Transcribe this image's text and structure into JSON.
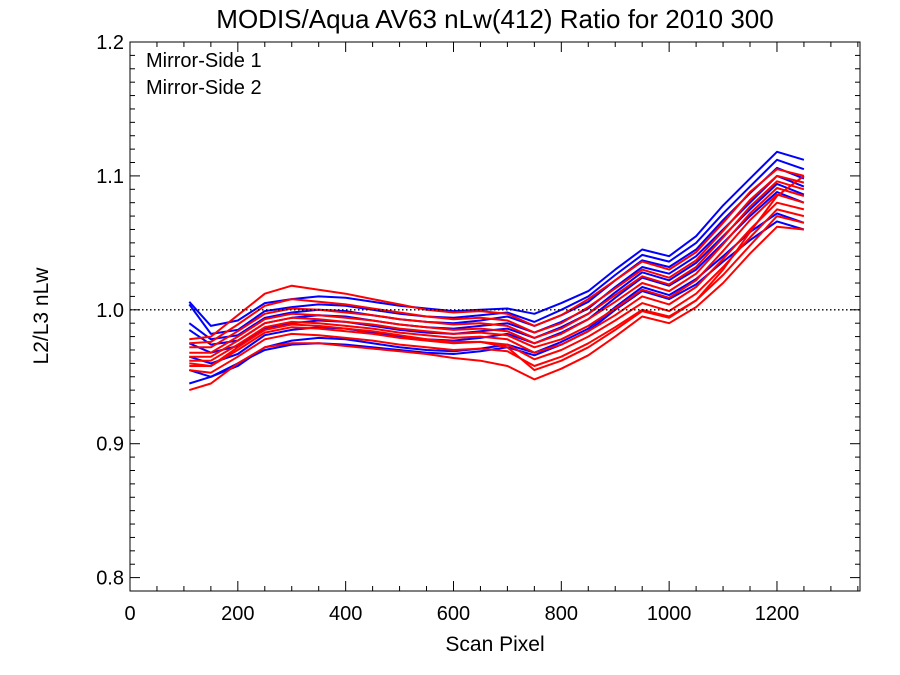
{
  "chart_data": {
    "type": "line",
    "title": "MODIS/Aqua AV63 nLw(412) Ratio for 2010 300",
    "xlabel": "Scan Pixel",
    "ylabel": "L2/L3 nLw",
    "xlim": [
      0,
      1354
    ],
    "ylim": [
      0.79,
      1.2
    ],
    "xticks": [
      0,
      200,
      400,
      600,
      800,
      1000,
      1200
    ],
    "xtick_labels": [
      "0",
      "200",
      "400",
      "600",
      "800",
      "1000",
      "1200"
    ],
    "yticks": [
      0.8,
      0.9,
      1.0,
      1.1,
      1.2
    ],
    "ytick_labels": [
      "0.8",
      "0.9",
      "1.0",
      "1.1",
      "1.2"
    ],
    "reference_line": {
      "y": 1.0,
      "style": "dotted"
    },
    "grid": false,
    "legend": {
      "placement": "top-left"
    },
    "colors": {
      "Mirror-Side 1": "#0000ff",
      "Mirror-Side 2": "#ff0000"
    },
    "x": [
      110,
      150,
      200,
      250,
      300,
      350,
      400,
      450,
      500,
      550,
      600,
      650,
      700,
      750,
      800,
      850,
      900,
      950,
      1000,
      1050,
      1100,
      1150,
      1200,
      1250
    ],
    "series": [
      {
        "name": "Mirror-Side 1",
        "values": [
          1.006,
          0.988,
          0.992,
          1.005,
          1.008,
          1.01,
          1.009,
          1.006,
          1.003,
          1.001,
          0.999,
          1.0,
          1.001,
          0.997,
          1.005,
          1.014,
          1.03,
          1.045,
          1.04,
          1.055,
          1.078,
          1.098,
          1.118,
          1.112
        ]
      },
      {
        "name": "Mirror-Side 1",
        "values": [
          1.004,
          0.982,
          0.985,
          0.999,
          1.002,
          1.004,
          1.003,
          1.0,
          0.997,
          0.995,
          0.994,
          0.996,
          0.998,
          0.991,
          1.0,
          1.01,
          1.026,
          1.041,
          1.036,
          1.05,
          1.072,
          1.092,
          1.112,
          1.105
        ]
      },
      {
        "name": "Mirror-Side 1",
        "values": [
          0.99,
          0.978,
          0.981,
          0.994,
          0.998,
          1.0,
          0.999,
          0.996,
          0.993,
          0.991,
          0.99,
          0.992,
          0.995,
          0.988,
          0.996,
          1.006,
          1.022,
          1.037,
          1.032,
          1.045,
          1.067,
          1.087,
          1.106,
          1.098
        ]
      },
      {
        "name": "Mirror-Side 1",
        "values": [
          0.985,
          0.974,
          0.977,
          0.99,
          0.994,
          0.996,
          0.995,
          0.992,
          0.989,
          0.987,
          0.986,
          0.988,
          0.99,
          0.983,
          0.991,
          1.001,
          1.017,
          1.032,
          1.027,
          1.04,
          1.06,
          1.08,
          1.1,
          1.092
        ]
      },
      {
        "name": "Mirror-Side 1",
        "values": [
          0.975,
          0.968,
          0.973,
          0.986,
          0.99,
          0.992,
          0.991,
          0.988,
          0.985,
          0.983,
          0.982,
          0.984,
          0.986,
          0.979,
          0.987,
          0.997,
          1.013,
          1.028,
          1.022,
          1.035,
          1.055,
          1.075,
          1.094,
          1.086
        ]
      },
      {
        "name": "Mirror-Side 1",
        "values": [
          0.965,
          0.96,
          0.967,
          0.981,
          0.985,
          0.987,
          0.986,
          0.983,
          0.98,
          0.978,
          0.977,
          0.979,
          0.982,
          0.975,
          0.983,
          0.993,
          1.009,
          1.024,
          1.018,
          1.03,
          1.05,
          1.07,
          1.088,
          1.08
        ]
      },
      {
        "name": "Mirror-Side 1",
        "values": [
          0.955,
          0.95,
          0.958,
          0.972,
          0.977,
          0.979,
          0.978,
          0.975,
          0.972,
          0.97,
          0.969,
          0.971,
          0.974,
          0.968,
          0.976,
          0.986,
          1.002,
          1.017,
          1.011,
          1.023,
          1.04,
          1.058,
          1.072,
          1.065
        ]
      },
      {
        "name": "Mirror-Side 1",
        "values": [
          0.945,
          0.95,
          0.96,
          0.97,
          0.974,
          0.975,
          0.974,
          0.972,
          0.97,
          0.968,
          0.967,
          0.969,
          0.972,
          0.966,
          0.974,
          0.984,
          1.0,
          1.014,
          1.008,
          1.019,
          1.036,
          1.052,
          1.066,
          1.06
        ]
      },
      {
        "name": "Mirror-Side 2",
        "values": [
          0.978,
          0.98,
          0.996,
          1.012,
          1.018,
          1.015,
          1.012,
          1.008,
          1.004,
          1.0,
          0.998,
          0.999,
          0.997,
          0.988,
          0.996,
          1.008,
          1.022,
          1.036,
          1.03,
          1.043,
          1.065,
          1.088,
          1.105,
          1.1
        ]
      },
      {
        "name": "Mirror-Side 2",
        "values": [
          0.975,
          0.976,
          0.989,
          1.003,
          1.008,
          1.006,
          1.004,
          1.001,
          0.998,
          0.995,
          0.993,
          0.994,
          0.992,
          0.983,
          0.99,
          1.002,
          1.016,
          1.03,
          1.024,
          1.037,
          1.059,
          1.082,
          1.1,
          1.095
        ]
      },
      {
        "name": "Mirror-Side 2",
        "values": [
          0.972,
          0.972,
          0.984,
          0.997,
          1.001,
          1.0,
          0.998,
          0.996,
          0.993,
          0.991,
          0.989,
          0.99,
          0.988,
          0.979,
          0.986,
          0.997,
          1.011,
          1.025,
          1.019,
          1.032,
          1.054,
          1.077,
          1.096,
          1.09
        ]
      },
      {
        "name": "Mirror-Side 2",
        "values": [
          0.968,
          0.968,
          0.98,
          0.993,
          0.997,
          0.996,
          0.994,
          0.992,
          0.989,
          0.987,
          0.985,
          0.986,
          0.984,
          0.975,
          0.982,
          0.993,
          1.006,
          1.02,
          1.014,
          1.027,
          1.049,
          1.072,
          1.091,
          1.085
        ]
      },
      {
        "name": "Mirror-Side 2",
        "values": [
          0.965,
          0.965,
          0.977,
          0.99,
          0.994,
          0.993,
          0.991,
          0.989,
          0.986,
          0.984,
          0.982,
          0.983,
          0.981,
          0.972,
          0.978,
          0.988,
          1.001,
          1.015,
          1.009,
          1.022,
          1.044,
          1.067,
          1.086,
          1.08
        ]
      },
      {
        "name": "Mirror-Side 2",
        "values": [
          0.962,
          0.962,
          0.974,
          0.987,
          0.991,
          0.99,
          0.988,
          0.986,
          0.983,
          0.981,
          0.979,
          0.98,
          0.978,
          0.968,
          0.974,
          0.984,
          0.996,
          1.01,
          1.004,
          1.017,
          1.038,
          1.06,
          1.08,
          1.075
        ]
      },
      {
        "name": "Mirror-Side 2",
        "values": [
          0.958,
          0.958,
          0.97,
          0.983,
          0.987,
          0.986,
          0.984,
          0.982,
          0.979,
          0.977,
          0.975,
          0.976,
          0.974,
          0.963,
          0.97,
          0.98,
          0.992,
          1.005,
          0.999,
          1.012,
          1.032,
          1.054,
          1.075,
          1.07
        ]
      },
      {
        "name": "Mirror-Side 2",
        "values": [
          0.955,
          0.953,
          0.965,
          0.978,
          0.982,
          0.981,
          0.979,
          0.977,
          0.974,
          0.972,
          0.97,
          0.971,
          0.969,
          0.958,
          0.965,
          0.975,
          0.987,
          1.0,
          0.995,
          1.007,
          1.026,
          1.048,
          1.07,
          1.065
        ]
      },
      {
        "name": "Mirror-Side 2",
        "values": [
          0.94,
          0.945,
          0.96,
          0.972,
          0.975,
          0.975,
          0.973,
          0.971,
          0.969,
          0.967,
          0.964,
          0.962,
          0.958,
          0.948,
          0.956,
          0.966,
          0.98,
          0.995,
          0.99,
          1.002,
          1.02,
          1.042,
          1.062,
          1.06
        ]
      },
      {
        "name": "Mirror-Side 2",
        "values": [
          0.96,
          0.958,
          0.972,
          0.985,
          0.989,
          0.988,
          0.986,
          0.984,
          0.981,
          0.978,
          0.976,
          0.976,
          0.972,
          0.955,
          0.962,
          0.972,
          0.985,
          0.999,
          0.994,
          1.007,
          1.03,
          1.058,
          1.085,
          1.1
        ]
      }
    ]
  },
  "legend_entries": [
    "Mirror-Side 1",
    "Mirror-Side 2"
  ]
}
